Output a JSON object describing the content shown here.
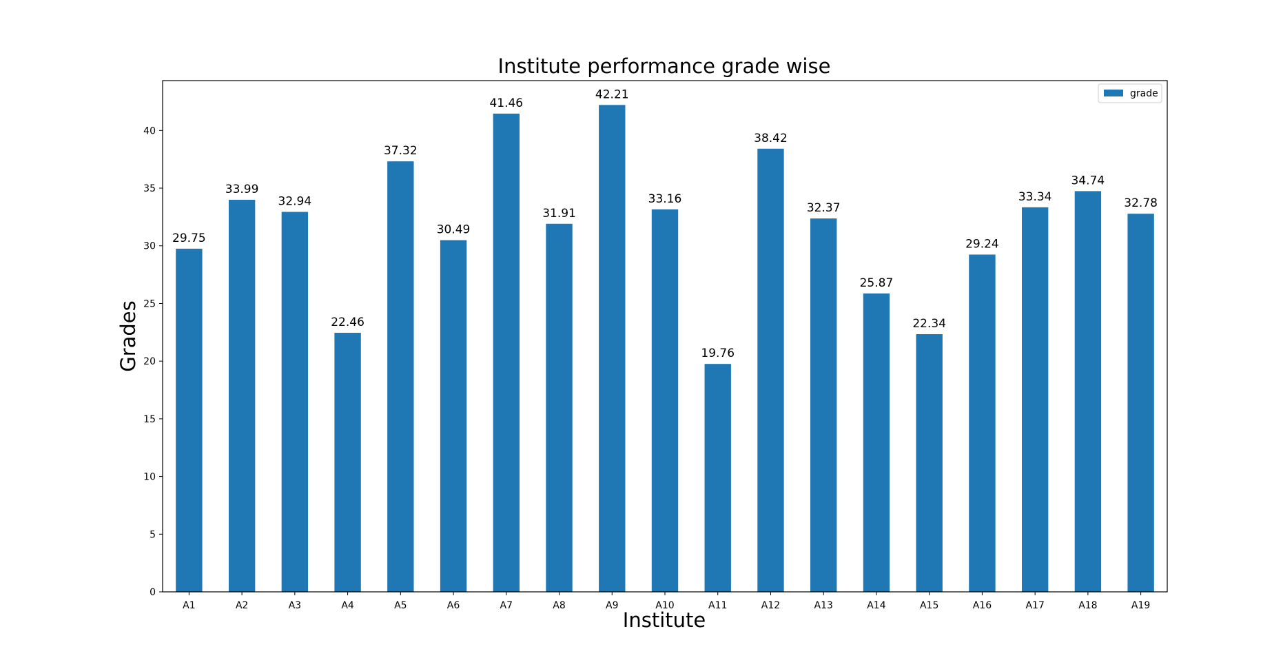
{
  "chart_data": {
    "type": "bar",
    "title": "Institute performance grade wise",
    "xlabel": "Institute",
    "ylabel": "Grades",
    "categories": [
      "A1",
      "A2",
      "A3",
      "A4",
      "A5",
      "A6",
      "A7",
      "A8",
      "A9",
      "A10",
      "A11",
      "A12",
      "A13",
      "A14",
      "A15",
      "A16",
      "A17",
      "A18",
      "A19"
    ],
    "series": [
      {
        "name": "grade",
        "color": "#1f77b4",
        "values": [
          29.75,
          33.99,
          32.94,
          22.46,
          37.32,
          30.49,
          41.46,
          31.91,
          42.21,
          33.16,
          19.76,
          38.42,
          32.37,
          25.87,
          22.34,
          29.24,
          33.34,
          34.74,
          32.78
        ]
      }
    ],
    "data_labels": [
      "29.75",
      "33.99",
      "32.94",
      "22.46",
      "37.32",
      "30.49",
      "41.46",
      "31.91",
      "42.21",
      "33.16",
      "19.76",
      "38.42",
      "32.37",
      "25.87",
      "22.34",
      "29.24",
      "33.34",
      "34.74",
      "32.78"
    ],
    "yticks": [
      "0",
      "5",
      "10",
      "15",
      "20",
      "25",
      "30",
      "35",
      "40"
    ],
    "ylim": [
      0,
      44.32
    ],
    "grid": false,
    "legend_position": "top-right"
  }
}
